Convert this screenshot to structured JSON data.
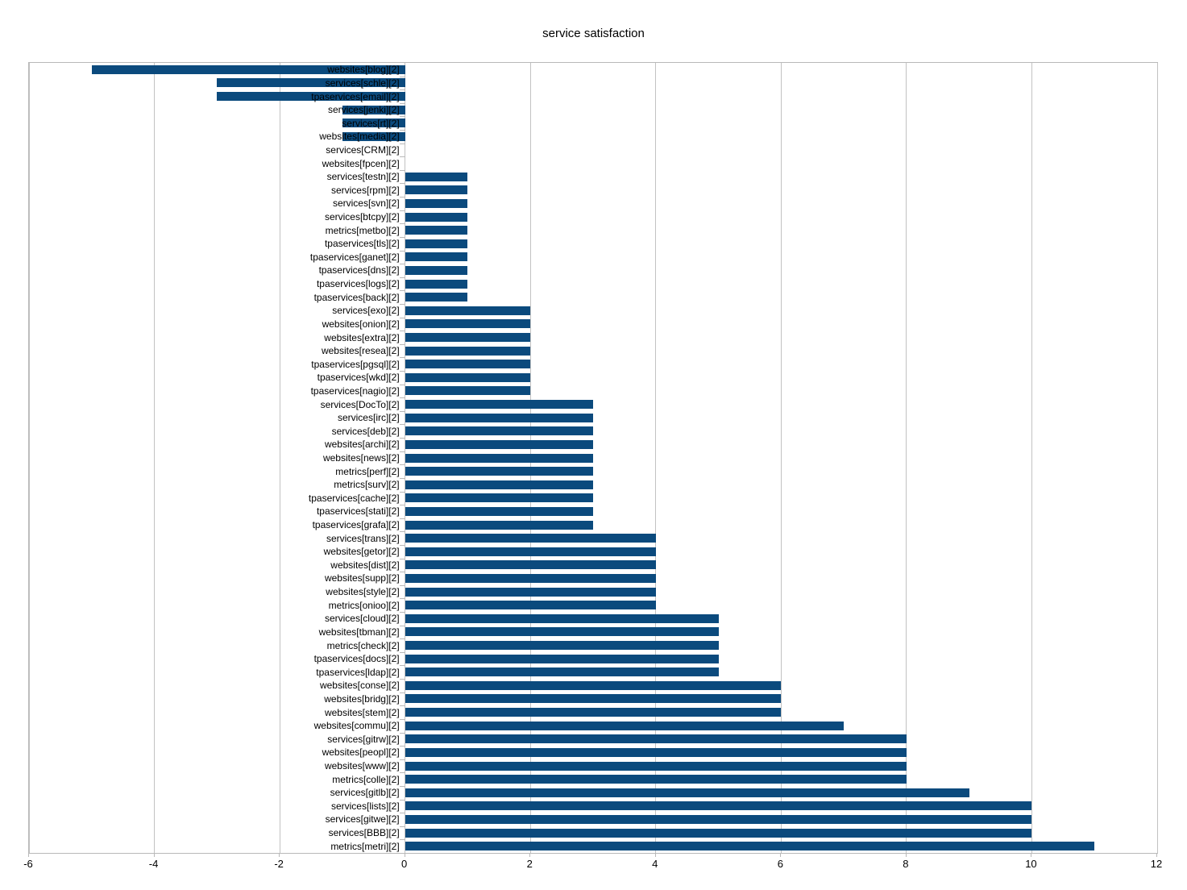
{
  "title": "service satisfaction",
  "chart_data": {
    "type": "bar",
    "orientation": "horizontal",
    "title": "service satisfaction",
    "xlabel": "",
    "ylabel": "",
    "xlim": [
      -6,
      12
    ],
    "xticks": [
      -6,
      -4,
      -2,
      0,
      2,
      4,
      6,
      8,
      10,
      12
    ],
    "grid": true,
    "legend": false,
    "bar_color": "#0b4a7d",
    "gridline_color": "#c2c2c2",
    "axis_color": "#b9b9b9",
    "background_color": "#ffffff",
    "categories": [
      "websites[blog][2]",
      "services[schle][2]",
      "tpaservices[email][2]",
      "services[jenki][2]",
      "services[rt][2]",
      "websites[media][2]",
      "services[CRM][2]",
      "websites[fpcen][2]",
      "services[testn][2]",
      "services[rpm][2]",
      "services[svn][2]",
      "services[btcpy][2]",
      "metrics[metbo][2]",
      "tpaservices[tls][2]",
      "tpaservices[ganet][2]",
      "tpaservices[dns][2]",
      "tpaservices[logs][2]",
      "tpaservices[back][2]",
      "services[exo][2]",
      "websites[onion][2]",
      "websites[extra][2]",
      "websites[resea][2]",
      "tpaservices[pgsql][2]",
      "tpaservices[wkd][2]",
      "tpaservices[nagio][2]",
      "services[DocTo][2]",
      "services[irc][2]",
      "services[deb][2]",
      "websites[archi][2]",
      "websites[news][2]",
      "metrics[perf][2]",
      "metrics[surv][2]",
      "tpaservices[cache][2]",
      "tpaservices[stati][2]",
      "tpaservices[grafa][2]",
      "services[trans][2]",
      "websites[getor][2]",
      "websites[dist][2]",
      "websites[supp][2]",
      "websites[style][2]",
      "metrics[onioo][2]",
      "services[cloud][2]",
      "websites[tbman][2]",
      "metrics[check][2]",
      "tpaservices[docs][2]",
      "tpaservices[ldap][2]",
      "websites[conse][2]",
      "websites[bridg][2]",
      "websites[stem][2]",
      "websites[commu][2]",
      "services[gitrw][2]",
      "websites[peopl][2]",
      "websites[www][2]",
      "metrics[colle][2]",
      "services[gitlb][2]",
      "services[lists][2]",
      "services[gitwe][2]",
      "services[BBB][2]",
      "metrics[metri][2]"
    ],
    "values": [
      -5,
      -3,
      -3,
      -1,
      -1,
      -1,
      0,
      0,
      1,
      1,
      1,
      1,
      1,
      1,
      1,
      1,
      1,
      1,
      2,
      2,
      2,
      2,
      2,
      2,
      2,
      3,
      3,
      3,
      3,
      3,
      3,
      3,
      3,
      3,
      3,
      4,
      4,
      4,
      4,
      4,
      4,
      5,
      5,
      5,
      5,
      5,
      6,
      6,
      6,
      7,
      8,
      8,
      8,
      8,
      9,
      10,
      10,
      10,
      11
    ]
  }
}
